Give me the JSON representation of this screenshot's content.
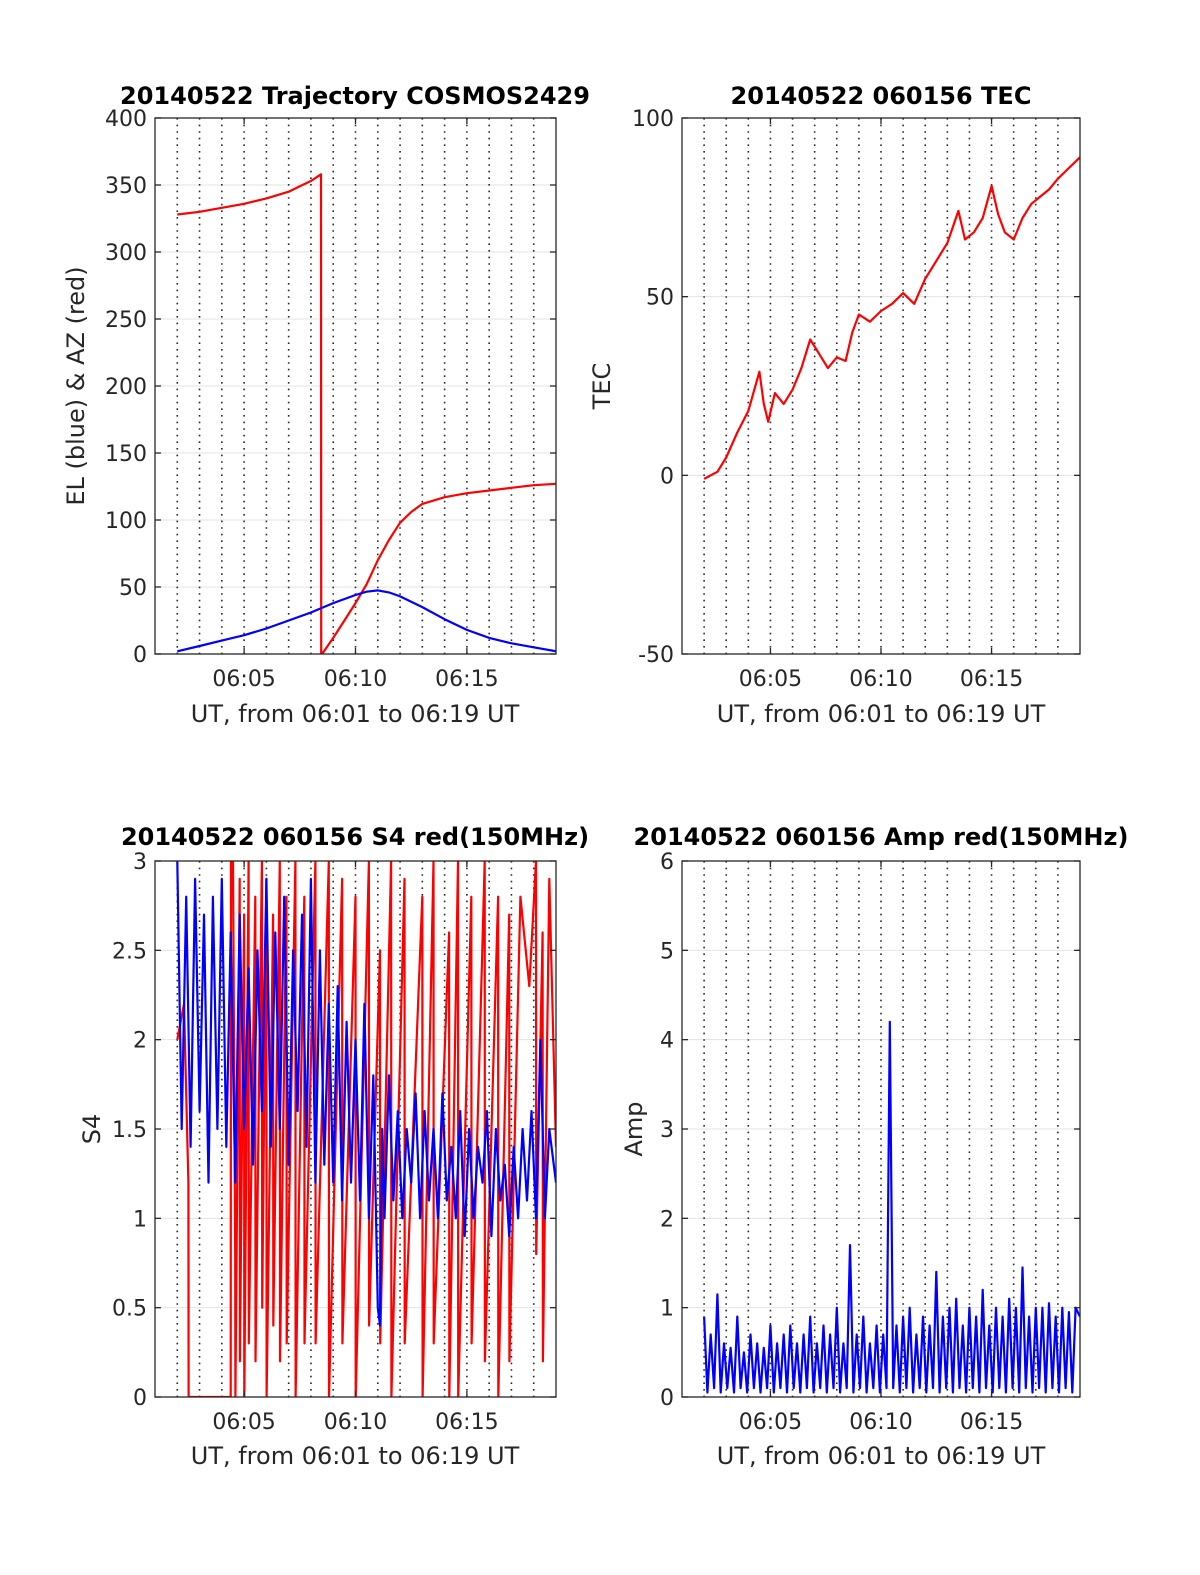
{
  "figure": {
    "background": "#ffffff"
  },
  "chart_data": [
    {
      "type": "line",
      "title": "20140522 Trajectory COSMOS2429",
      "xlabel": "UT, from 06:01 to 06:19 UT",
      "ylabel": "EL (blue) & AZ (red)",
      "xlim": [
        1.0,
        19.0
      ],
      "xunit": "minutes after 06:00 UT",
      "xticks": [
        5,
        10,
        15
      ],
      "xticklabels": [
        "06:05",
        "06:10",
        "06:15"
      ],
      "ylim": [
        0,
        400
      ],
      "yticks": [
        0,
        50,
        100,
        150,
        200,
        250,
        300,
        350,
        400
      ],
      "yticklabels": [
        "0",
        "50",
        "100",
        "150",
        "200",
        "250",
        "300",
        "350",
        "400"
      ],
      "grid": {
        "x": "dotted",
        "y": "solid-light"
      },
      "series": [
        {
          "color": "#ff0000",
          "x": [
            2.0,
            3.0,
            4.0,
            5.0,
            6.0,
            7.0,
            7.5,
            8.0,
            8.45,
            8.46,
            8.5,
            9.0,
            9.5,
            10.0,
            10.5,
            11.0,
            11.5,
            12.0,
            12.5,
            13.0,
            14.0,
            15.0,
            16.0,
            17.0,
            18.0,
            19.0
          ],
          "y": [
            328,
            330,
            333,
            336,
            340,
            345,
            349,
            353,
            358,
            0,
            0,
            12,
            25,
            38,
            52,
            70,
            85,
            98,
            106,
            112,
            117,
            120,
            122,
            124,
            126,
            127
          ]
        },
        {
          "color": "#0000ff",
          "x": [
            2.0,
            3.0,
            4.0,
            5.0,
            6.0,
            7.0,
            8.0,
            9.0,
            10.0,
            10.5,
            11.0,
            11.5,
            12.0,
            13.0,
            14.0,
            15.0,
            16.0,
            17.0,
            18.0,
            19.0
          ],
          "y": [
            2,
            6,
            10,
            14,
            19,
            25,
            31,
            38,
            44,
            46.5,
            47.5,
            46,
            43,
            35,
            26,
            18,
            12,
            8,
            5,
            2
          ]
        }
      ]
    },
    {
      "type": "line",
      "title": "20140522 060156 TEC",
      "xlabel": "UT, from 06:01 to 06:19 UT",
      "ylabel": "TEC",
      "xlim": [
        1.0,
        19.0
      ],
      "xunit": "minutes after 06:00 UT",
      "xticks": [
        5,
        10,
        15
      ],
      "xticklabels": [
        "06:05",
        "06:10",
        "06:15"
      ],
      "ylim": [
        -50,
        100
      ],
      "yticks": [
        -50,
        0,
        50,
        100
      ],
      "yticklabels": [
        "-50",
        "0",
        "50",
        "100"
      ],
      "grid": {
        "x": "dotted",
        "y": "solid-light"
      },
      "series": [
        {
          "color": "#ff0000",
          "x": [
            2.0,
            2.3,
            2.6,
            3.0,
            3.5,
            4.0,
            4.5,
            4.7,
            4.9,
            5.2,
            5.6,
            6.0,
            6.4,
            6.8,
            7.2,
            7.6,
            8.0,
            8.4,
            8.7,
            9.0,
            9.5,
            10.0,
            10.5,
            11.0,
            11.5,
            12.0,
            12.5,
            13.0,
            13.5,
            13.8,
            14.2,
            14.6,
            15.0,
            15.3,
            15.6,
            16.0,
            16.4,
            16.8,
            17.2,
            17.6,
            18.0,
            18.5,
            19.0
          ],
          "y": [
            -1,
            0,
            1,
            5,
            12,
            18,
            29,
            20,
            15,
            23,
            20,
            24,
            30,
            38,
            34,
            30,
            33,
            32,
            40,
            45,
            43,
            46,
            48,
            51,
            48,
            55,
            60,
            65,
            74,
            66,
            68,
            72,
            81,
            73,
            68,
            66,
            72,
            76,
            78,
            80,
            83,
            86,
            89
          ]
        }
      ]
    },
    {
      "type": "line",
      "title": "20140522 060156 S4 red(150MHz)",
      "xlabel": "UT, from 06:01 to 06:19 UT",
      "ylabel": "S4",
      "xlim": [
        1.0,
        19.0
      ],
      "xunit": "minutes after 06:00 UT",
      "xticks": [
        5,
        10,
        15
      ],
      "xticklabels": [
        "06:05",
        "06:10",
        "06:15"
      ],
      "ylim": [
        0,
        3
      ],
      "yticks": [
        0,
        0.5,
        1,
        1.5,
        2,
        2.5,
        3
      ],
      "yticklabels": [
        "0",
        "0.5",
        "1",
        "1.5",
        "2",
        "2.5",
        "3"
      ],
      "grid": {
        "x": "dotted",
        "y": "solid-light"
      },
      "series": [
        {
          "color": "#ff0000",
          "x": [
            2.0,
            2.3,
            2.5,
            2.51,
            2.6,
            3.0,
            4.4,
            4.41,
            4.5,
            4.6,
            4.61,
            4.8,
            4.81,
            5.0,
            5.01,
            5.2,
            5.21,
            5.5,
            5.51,
            5.8,
            5.81,
            6.0,
            6.01,
            6.3,
            6.31,
            6.6,
            6.61,
            6.9,
            6.91,
            7.3,
            7.31,
            7.7,
            7.71,
            8.2,
            8.21,
            8.8,
            8.81,
            9.4,
            9.41,
            10.0,
            10.01,
            10.6,
            10.61,
            11.1,
            11.11,
            11.6,
            11.61,
            12.2,
            12.21,
            13.0,
            13.01,
            13.5,
            13.51,
            14.2,
            14.21,
            14.6,
            14.61,
            15.2,
            15.21,
            15.8,
            15.81,
            16.4,
            16.41,
            16.9,
            16.91,
            17.4,
            17.8,
            18.1,
            18.11,
            18.4,
            18.41,
            18.7,
            19.0
          ],
          "y": [
            2.0,
            2.2,
            1.2,
            0,
            0,
            0,
            0,
            3.0,
            3.0,
            0.8,
            0,
            2.9,
            0.2,
            2.7,
            0,
            3.0,
            0.3,
            2.8,
            0.2,
            3.0,
            0.5,
            2.9,
            0,
            2.7,
            0.4,
            3.0,
            0.2,
            2.8,
            0.3,
            3.0,
            0,
            2.8,
            0.3,
            3.0,
            0.3,
            3.0,
            0,
            2.9,
            0.3,
            2.8,
            0,
            3.0,
            0.4,
            2.5,
            0.3,
            3.0,
            0,
            2.9,
            0.3,
            2.8,
            0,
            3.0,
            0.3,
            2.6,
            0,
            3.0,
            0,
            2.8,
            0.3,
            3.0,
            0.2,
            2.8,
            0,
            2.7,
            0.2,
            2.8,
            2.3,
            3.0,
            0.8,
            2.6,
            0.2,
            2.9,
            1.4
          ]
        },
        {
          "color": "#0000ff",
          "x": [
            2.0,
            2.2,
            2.4,
            2.6,
            2.8,
            3.0,
            3.2,
            3.4,
            3.6,
            3.8,
            4.0,
            4.2,
            4.4,
            4.6,
            4.8,
            5.0,
            5.2,
            5.4,
            5.6,
            5.8,
            6.0,
            6.2,
            6.4,
            6.6,
            6.8,
            7.0,
            7.2,
            7.4,
            7.6,
            7.8,
            8.0,
            8.2,
            8.4,
            8.6,
            8.8,
            9.0,
            9.2,
            9.4,
            9.6,
            9.8,
            10.0,
            10.2,
            10.4,
            10.6,
            10.8,
            11.0,
            11.1,
            11.2,
            11.3,
            11.5,
            11.7,
            11.9,
            12.1,
            12.3,
            12.5,
            12.7,
            12.9,
            13.1,
            13.3,
            13.5,
            13.7,
            13.9,
            14.1,
            14.3,
            14.5,
            14.7,
            14.9,
            15.1,
            15.3,
            15.5,
            15.7,
            15.9,
            16.1,
            16.3,
            16.5,
            16.7,
            16.9,
            17.1,
            17.3,
            17.5,
            17.7,
            17.9,
            18.1,
            18.3,
            18.5,
            18.7,
            19.0
          ],
          "y": [
            3.0,
            1.5,
            2.8,
            1.4,
            2.9,
            1.6,
            2.7,
            1.2,
            2.8,
            1.5,
            2.9,
            1.4,
            2.6,
            1.2,
            2.7,
            1.5,
            2.4,
            1.3,
            2.5,
            1.6,
            2.9,
            1.4,
            2.6,
            1.5,
            2.8,
            1.3,
            2.5,
            1.6,
            2.7,
            1.4,
            2.9,
            1.2,
            2.5,
            1.3,
            2.2,
            1.2,
            2.3,
            1.1,
            2.1,
            1.2,
            2.0,
            1.1,
            2.2,
            1.0,
            1.8,
            0.5,
            0.4,
            1.5,
            1.0,
            1.8,
            1.1,
            1.6,
            1.0,
            1.5,
            1.2,
            1.7,
            1.0,
            1.6,
            1.1,
            1.5,
            1.0,
            1.7,
            1.1,
            1.4,
            1.0,
            1.6,
            0.9,
            1.5,
            1.0,
            1.4,
            1.2,
            1.6,
            0.9,
            1.5,
            1.1,
            1.3,
            0.9,
            1.4,
            1.0,
            1.5,
            1.1,
            1.6,
            1.0,
            2.0,
            1.0,
            1.5,
            1.2
          ]
        }
      ]
    },
    {
      "type": "line",
      "title": "20140522 060156 Amp red(150MHz)",
      "xlabel": "UT, from 06:01 to 06:19 UT",
      "ylabel": "Amp",
      "xlim": [
        1.0,
        19.0
      ],
      "xunit": "minutes after 06:00 UT",
      "xticks": [
        5,
        10,
        15
      ],
      "xticklabels": [
        "06:05",
        "06:10",
        "06:15"
      ],
      "ylim": [
        0,
        6
      ],
      "yticks": [
        0,
        1,
        2,
        3,
        4,
        5,
        6
      ],
      "yticklabels": [
        "0",
        "1",
        "2",
        "3",
        "4",
        "5",
        "6"
      ],
      "grid": {
        "x": "dotted",
        "y": "solid-light"
      },
      "series": [
        {
          "color": "#0000ff",
          "x": [
            2.0,
            2.15,
            2.3,
            2.45,
            2.6,
            2.75,
            2.9,
            3.05,
            3.2,
            3.35,
            3.5,
            3.65,
            3.8,
            3.95,
            4.1,
            4.25,
            4.4,
            4.55,
            4.7,
            4.85,
            5.0,
            5.15,
            5.3,
            5.45,
            5.6,
            5.75,
            5.9,
            6.05,
            6.2,
            6.35,
            6.5,
            6.65,
            6.8,
            6.95,
            7.1,
            7.25,
            7.4,
            7.55,
            7.7,
            7.85,
            8.0,
            8.15,
            8.3,
            8.45,
            8.6,
            8.75,
            8.9,
            9.05,
            9.2,
            9.35,
            9.5,
            9.65,
            9.8,
            9.95,
            10.1,
            10.25,
            10.4,
            10.55,
            10.7,
            10.85,
            11.0,
            11.15,
            11.3,
            11.45,
            11.6,
            11.75,
            11.9,
            12.05,
            12.2,
            12.35,
            12.5,
            12.65,
            12.8,
            12.95,
            13.1,
            13.25,
            13.4,
            13.55,
            13.7,
            13.85,
            14.0,
            14.15,
            14.3,
            14.45,
            14.6,
            14.75,
            14.9,
            15.05,
            15.2,
            15.35,
            15.5,
            15.65,
            15.8,
            15.95,
            16.1,
            16.25,
            16.4,
            16.55,
            16.7,
            16.85,
            17.0,
            17.15,
            17.3,
            17.45,
            17.6,
            17.75,
            17.9,
            18.05,
            18.2,
            18.35,
            18.5,
            18.65,
            18.8,
            19.0
          ],
          "y": [
            0.9,
            0.05,
            0.7,
            0.1,
            1.15,
            0.05,
            0.6,
            0.1,
            0.55,
            0.05,
            0.9,
            0.1,
            0.5,
            0.05,
            0.7,
            0.1,
            0.6,
            0.05,
            0.55,
            0.1,
            0.8,
            0.05,
            0.6,
            0.1,
            0.7,
            0.05,
            0.8,
            0.1,
            0.6,
            0.05,
            0.7,
            0.1,
            0.9,
            0.05,
            0.6,
            0.1,
            0.8,
            0.05,
            0.7,
            0.1,
            1.0,
            0.05,
            0.6,
            0.1,
            1.7,
            0.05,
            0.7,
            0.1,
            0.9,
            0.05,
            0.6,
            0.1,
            0.8,
            0.05,
            0.7,
            0.1,
            4.2,
            0.1,
            0.8,
            0.05,
            0.9,
            0.1,
            1.0,
            0.05,
            0.7,
            0.1,
            0.9,
            0.05,
            0.8,
            0.1,
            1.4,
            0.05,
            0.9,
            0.1,
            1.0,
            0.05,
            1.1,
            0.1,
            0.8,
            0.05,
            1.0,
            0.1,
            0.9,
            0.05,
            1.2,
            0.1,
            0.8,
            0.05,
            1.0,
            0.1,
            0.9,
            0.05,
            1.1,
            0.1,
            1.0,
            0.05,
            1.45,
            0.1,
            0.9,
            0.05,
            1.0,
            0.1,
            1.0,
            0.05,
            1.05,
            0.1,
            0.9,
            0.05,
            1.0,
            0.1,
            0.95,
            0.05,
            1.0,
            0.9
          ]
        }
      ]
    }
  ]
}
